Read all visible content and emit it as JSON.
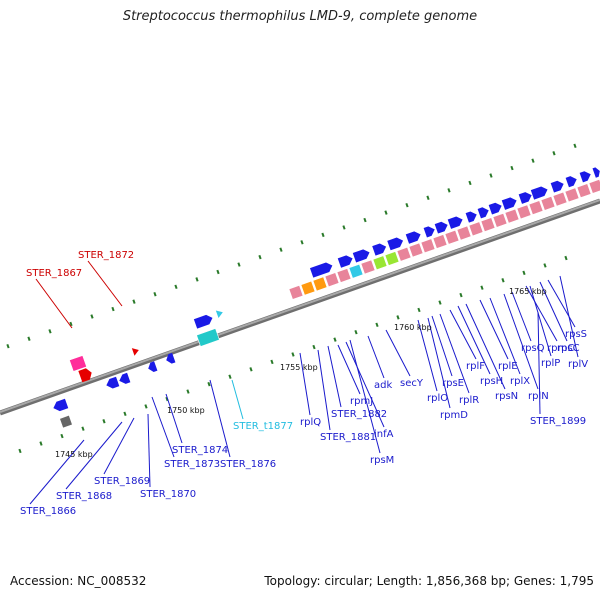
{
  "title": "Streptococcus thermophilus LMD-9, complete genome",
  "footer": {
    "accession": "Accession: NC_008532",
    "topology": "Topology: circular; Length: 1,856,368 bp; Genes: 1,795"
  },
  "colors": {
    "backbone": "#808080",
    "cds": "#1a1ae6",
    "rrna_pink": "#e8849a",
    "trna": "#33c9e6",
    "tick": "#2a7a2a",
    "red_label": "#cc0000",
    "cyan_label": "#22bde0",
    "blue_label": "#1a1acc"
  },
  "scale_labels": [
    "1745 kbp",
    "1750 kbp",
    "1755 kbp",
    "1760 kbp",
    "1765 kbp"
  ],
  "gene_labels": [
    {
      "text": "STER_1867",
      "color": "red"
    },
    {
      "text": "STER_1872",
      "color": "red"
    },
    {
      "text": "STER_1866",
      "color": "blue"
    },
    {
      "text": "STER_1868",
      "color": "blue"
    },
    {
      "text": "STER_1869",
      "color": "blue"
    },
    {
      "text": "STER_1870",
      "color": "blue"
    },
    {
      "text": "STER_1873",
      "color": "blue"
    },
    {
      "text": "STER_1874",
      "color": "blue"
    },
    {
      "text": "STER_1876",
      "color": "blue"
    },
    {
      "text": "STER_t1877",
      "color": "cyan"
    },
    {
      "text": "rplQ",
      "color": "blue"
    },
    {
      "text": "STER_1881",
      "color": "blue"
    },
    {
      "text": "STER_1882",
      "color": "blue"
    },
    {
      "text": "rpmJ",
      "color": "blue"
    },
    {
      "text": "infA",
      "color": "blue"
    },
    {
      "text": "rpsM",
      "color": "blue"
    },
    {
      "text": "adk",
      "color": "blue"
    },
    {
      "text": "secY",
      "color": "blue"
    },
    {
      "text": "rplO",
      "color": "blue"
    },
    {
      "text": "rpmD",
      "color": "blue"
    },
    {
      "text": "rpsE",
      "color": "blue"
    },
    {
      "text": "rplR",
      "color": "blue"
    },
    {
      "text": "rplF",
      "color": "blue"
    },
    {
      "text": "rpsH",
      "color": "blue"
    },
    {
      "text": "rpsN",
      "color": "blue"
    },
    {
      "text": "rplE",
      "color": "blue"
    },
    {
      "text": "rplX",
      "color": "blue"
    },
    {
      "text": "rplN",
      "color": "blue"
    },
    {
      "text": "rpsQ",
      "color": "blue"
    },
    {
      "text": "rpmC",
      "color": "blue"
    },
    {
      "text": "rplP",
      "color": "blue"
    },
    {
      "text": "rpsC",
      "color": "blue"
    },
    {
      "text": "rpsS",
      "color": "blue"
    },
    {
      "text": "rplV",
      "color": "blue"
    },
    {
      "text": "STER_1899",
      "color": "blue"
    }
  ]
}
